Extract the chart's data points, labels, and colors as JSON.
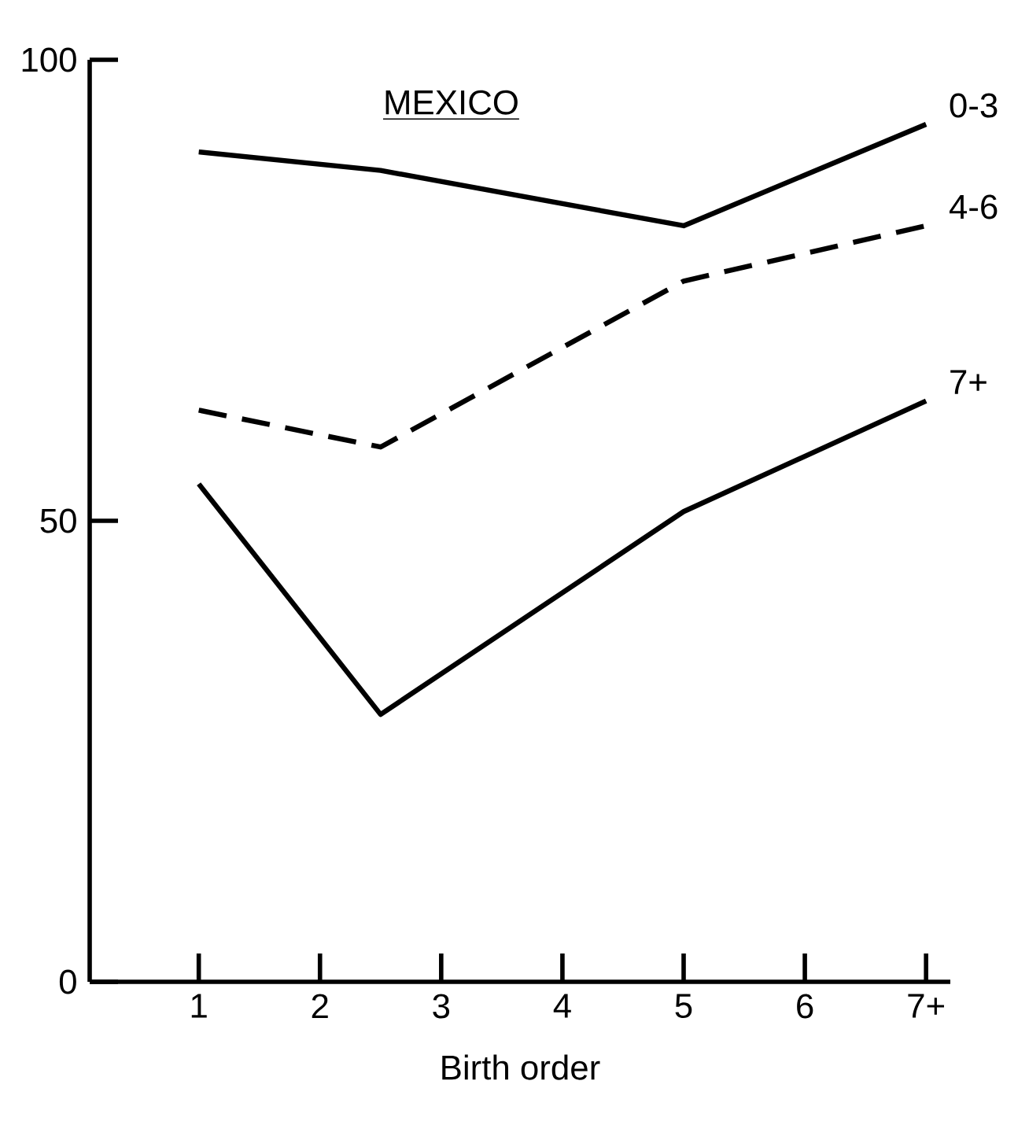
{
  "chart_data": {
    "type": "line",
    "title": "MEXICO",
    "xlabel": "Birth order",
    "x": [
      1,
      2.5,
      5,
      7
    ],
    "series": [
      {
        "name": "0-3",
        "color": "#000000",
        "line_style": "solid",
        "values": [
          90,
          88,
          82,
          93
        ]
      },
      {
        "name": "4-6",
        "color": "#000000",
        "line_style": "dashed",
        "values": [
          62,
          58,
          76,
          82
        ]
      },
      {
        "name": "7+",
        "color": "#000000",
        "line_style": "solid",
        "values": [
          54,
          29,
          51,
          63
        ]
      }
    ],
    "xlim": [
      0.1,
      7.2
    ],
    "ylim": [
      0,
      100
    ],
    "xticks": [
      1,
      2,
      3,
      4,
      5,
      6,
      {
        "value": 7,
        "label": "7+"
      }
    ],
    "yticks": [
      0,
      50,
      100
    ],
    "grid": false
  }
}
